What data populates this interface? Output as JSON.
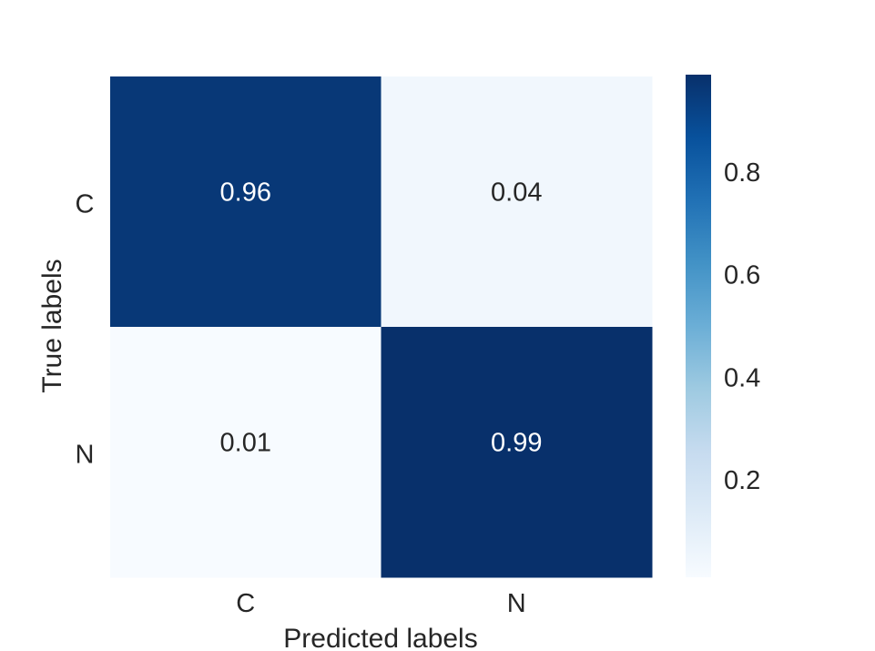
{
  "chart_data": {
    "type": "heatmap",
    "title": "",
    "xlabel": "Predicted labels",
    "ylabel": "True labels",
    "x_categories": [
      "C",
      "N"
    ],
    "y_categories": [
      "C",
      "N"
    ],
    "values": [
      [
        0.96,
        0.04
      ],
      [
        0.01,
        0.99
      ]
    ],
    "cell_labels": [
      [
        "0.96",
        "0.04"
      ],
      [
        "0.01",
        "0.99"
      ]
    ],
    "colormap": "Blues",
    "color_low": "#f7fbff",
    "color_high": "#08306b",
    "colorbar": {
      "range": [
        0.01,
        0.99
      ],
      "ticks": [
        0.2,
        0.4,
        0.6,
        0.8
      ],
      "tick_labels": [
        "0.2",
        "0.4",
        "0.6",
        "0.8"
      ]
    }
  }
}
